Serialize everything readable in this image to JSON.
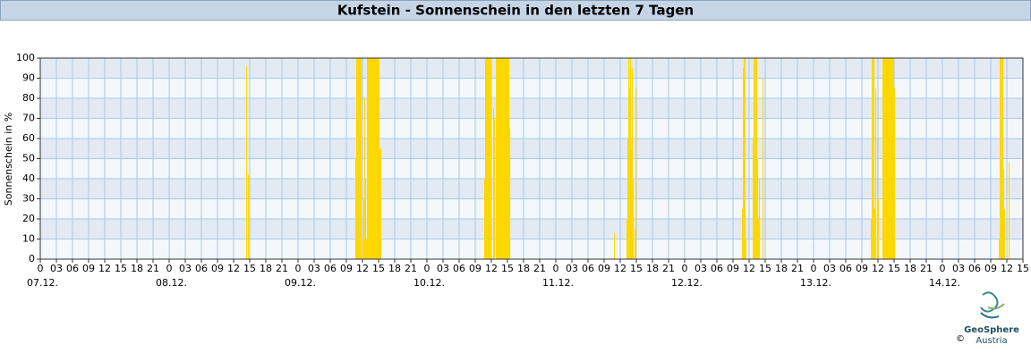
{
  "chart_data": {
    "type": "bar",
    "title": "Kufstein - Sonnenschein in den letzten 7 Tagen",
    "y_label": "Sonnenschein in %",
    "color": "#ffd700",
    "x": [
      38.33,
      38.67,
      58.67,
      58.83,
      59,
      59.17,
      59.33,
      59.5,
      59.67,
      60,
      60.17,
      60.33,
      60.5,
      60.67,
      60.83,
      61,
      61.17,
      61.33,
      61.5,
      61.67,
      61.83,
      62,
      62.17,
      62.33,
      62.5,
      62.67,
      62.83,
      63,
      63.17,
      63.33,
      82.67,
      82.83,
      83,
      83.17,
      83.33,
      83.5,
      83.67,
      83.83,
      84.33,
      84.5,
      84.83,
      85,
      85.17,
      85.33,
      85.5,
      85.67,
      85.83,
      86,
      86.17,
      86.33,
      86.5,
      86.67,
      86.83,
      87,
      87.17,
      87.33,
      106.83,
      109.17,
      109.33,
      109.5,
      109.67,
      109.83,
      110,
      110.17,
      110.33,
      110.67,
      110.83,
      130.67,
      130.83,
      131,
      131.17,
      131.33,
      132.67,
      132.83,
      133,
      133.17,
      133.33,
      133.5,
      133.67,
      133.83,
      134.5,
      154.67,
      154.83,
      155,
      155.17,
      155.33,
      155.5,
      155.83,
      156,
      156.83,
      157,
      157.17,
      157.33,
      157.5,
      157.67,
      157.83,
      158,
      158.17,
      158.33,
      158.5,
      158.67,
      158.83,
      159,
      178.5,
      178.67,
      178.83,
      179,
      179.17,
      179.33,
      179.5,
      180.33
    ],
    "values": [
      96,
      42,
      50,
      100,
      100,
      100,
      100,
      100,
      100,
      10,
      30,
      80,
      40,
      10,
      100,
      100,
      100,
      100,
      100,
      100,
      100,
      100,
      100,
      100,
      100,
      100,
      100,
      100,
      55,
      55,
      40,
      100,
      100,
      100,
      100,
      100,
      100,
      100,
      75,
      70,
      100,
      100,
      100,
      100,
      100,
      100,
      100,
      100,
      100,
      100,
      100,
      100,
      100,
      100,
      100,
      65,
      13,
      20,
      60,
      100,
      85,
      100,
      55,
      95,
      40,
      15,
      85,
      25,
      95,
      100,
      100,
      10,
      60,
      100,
      100,
      100,
      100,
      50,
      20,
      40,
      90,
      20,
      100,
      100,
      100,
      25,
      85,
      60,
      30,
      100,
      100,
      100,
      100,
      100,
      100,
      100,
      100,
      100,
      100,
      100,
      100,
      100,
      85,
      10,
      100,
      100,
      100,
      100,
      45,
      25,
      48
    ],
    "xlim": [
      0,
      183
    ],
    "xticks": [
      0,
      {
        "value": 3,
        "label": "03"
      },
      {
        "value": 6,
        "label": "06"
      },
      {
        "value": 9,
        "label": "09"
      },
      12,
      15,
      18,
      21,
      {
        "value": 24,
        "label": "0"
      },
      {
        "value": 27,
        "label": "03"
      },
      {
        "value": 30,
        "label": "06"
      },
      {
        "value": 33,
        "label": "09"
      },
      {
        "value": 36,
        "label": "12"
      },
      {
        "value": 39,
        "label": "15"
      },
      {
        "value": 42,
        "label": "18"
      },
      {
        "value": 45,
        "label": "21"
      },
      {
        "value": 48,
        "label": "0"
      },
      {
        "value": 51,
        "label": "03"
      },
      {
        "value": 54,
        "label": "06"
      },
      {
        "value": 57,
        "label": "09"
      },
      {
        "value": 60,
        "label": "12"
      },
      {
        "value": 63,
        "label": "15"
      },
      {
        "value": 66,
        "label": "18"
      },
      {
        "value": 69,
        "label": "21"
      },
      {
        "value": 72,
        "label": "0"
      },
      {
        "value": 75,
        "label": "03"
      },
      {
        "value": 78,
        "label": "06"
      },
      {
        "value": 81,
        "label": "09"
      },
      {
        "value": 84,
        "label": "12"
      },
      {
        "value": 87,
        "label": "15"
      },
      {
        "value": 90,
        "label": "18"
      },
      {
        "value": 93,
        "label": "21"
      },
      {
        "value": 96,
        "label": "0"
      },
      {
        "value": 99,
        "label": "03"
      },
      {
        "value": 102,
        "label": "06"
      },
      {
        "value": 105,
        "label": "09"
      },
      {
        "value": 108,
        "label": "12"
      },
      {
        "value": 111,
        "label": "15"
      },
      {
        "value": 114,
        "label": "18"
      },
      {
        "value": 117,
        "label": "21"
      },
      {
        "value": 120,
        "label": "0"
      },
      {
        "value": 123,
        "label": "03"
      },
      {
        "value": 126,
        "label": "06"
      },
      {
        "value": 129,
        "label": "09"
      },
      {
        "value": 132,
        "label": "12"
      },
      {
        "value": 135,
        "label": "15"
      },
      {
        "value": 138,
        "label": "18"
      },
      {
        "value": 141,
        "label": "21"
      },
      {
        "value": 144,
        "label": "0"
      },
      {
        "value": 147,
        "label": "03"
      },
      {
        "value": 150,
        "label": "06"
      },
      {
        "value": 153,
        "label": "09"
      },
      {
        "value": 156,
        "label": "12"
      },
      {
        "value": 159,
        "label": "15"
      },
      {
        "value": 162,
        "label": "18"
      },
      {
        "value": 165,
        "label": "21"
      },
      {
        "value": 168,
        "label": "0"
      },
      {
        "value": 171,
        "label": "03"
      },
      {
        "value": 174,
        "label": "06"
      },
      {
        "value": 177,
        "label": "09"
      },
      {
        "value": 180,
        "label": "12"
      },
      {
        "value": 183,
        "label": "15"
      }
    ],
    "xticks_days": [
      {
        "value": 0,
        "label": "07.12."
      },
      {
        "value": 24,
        "label": "08.12."
      },
      {
        "value": 48,
        "label": "09.12."
      },
      {
        "value": 72,
        "label": "10.12."
      },
      {
        "value": 96,
        "label": "11.12."
      },
      {
        "value": 120,
        "label": "12.12."
      },
      {
        "value": 144,
        "label": "13.12."
      },
      {
        "value": 168,
        "label": "14.12."
      }
    ],
    "ylim": [
      0,
      100
    ],
    "yticks": [
      0,
      10,
      20,
      30,
      40,
      50,
      60,
      70,
      80,
      90,
      100
    ],
    "grid": true,
    "logo": {
      "name": "GeoSphere",
      "sub": "Austria",
      "copyright": "©"
    }
  }
}
